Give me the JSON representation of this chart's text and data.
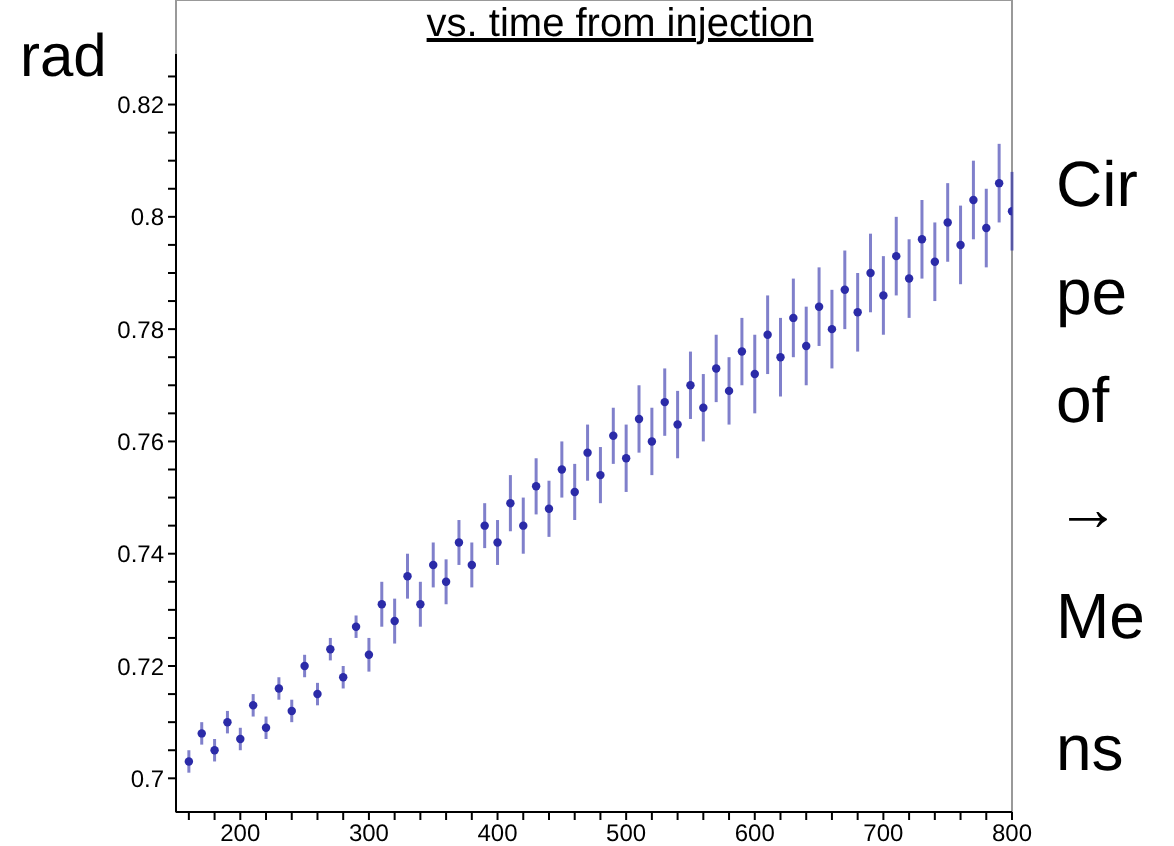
{
  "chart_data": {
    "type": "scatter",
    "title": "vs. time from injection",
    "ylabel": "rad",
    "annotations": [
      "Cir",
      "pe",
      "of",
      "→",
      "Me",
      "ns"
    ],
    "x": [
      160,
      170,
      180,
      190,
      200,
      210,
      220,
      230,
      240,
      250,
      260,
      270,
      280,
      290,
      300,
      310,
      320,
      330,
      340,
      350,
      360,
      370,
      380,
      390,
      400,
      410,
      420,
      430,
      440,
      450,
      460,
      470,
      480,
      490,
      500,
      510,
      520,
      530,
      540,
      550,
      560,
      570,
      580,
      590,
      600,
      610,
      620,
      630,
      640,
      650,
      660,
      670,
      680,
      690,
      700,
      710,
      720,
      730,
      740,
      750,
      760,
      770,
      780,
      790,
      800
    ],
    "series": [
      {
        "color": "#2b2ba8",
        "values": [
          0.703,
          0.708,
          0.705,
          0.71,
          0.707,
          0.713,
          0.709,
          0.716,
          0.712,
          0.72,
          0.715,
          0.723,
          0.718,
          0.727,
          0.722,
          0.731,
          0.728,
          0.736,
          0.731,
          0.738,
          0.735,
          0.742,
          0.738,
          0.745,
          0.742,
          0.749,
          0.745,
          0.752,
          0.748,
          0.755,
          0.751,
          0.758,
          0.754,
          0.761,
          0.757,
          0.764,
          0.76,
          0.767,
          0.763,
          0.77,
          0.766,
          0.773,
          0.769,
          0.776,
          0.772,
          0.779,
          0.775,
          0.782,
          0.777,
          0.784,
          0.78,
          0.787,
          0.783,
          0.79,
          0.786,
          0.793,
          0.789,
          0.796,
          0.792,
          0.799,
          0.795,
          0.803,
          0.798,
          0.806,
          0.801
        ],
        "errors": [
          0.002,
          0.002,
          0.002,
          0.002,
          0.002,
          0.002,
          0.002,
          0.002,
          0.002,
          0.002,
          0.002,
          0.002,
          0.002,
          0.002,
          0.003,
          0.004,
          0.004,
          0.004,
          0.004,
          0.004,
          0.004,
          0.004,
          0.004,
          0.004,
          0.004,
          0.005,
          0.005,
          0.005,
          0.005,
          0.005,
          0.005,
          0.005,
          0.005,
          0.005,
          0.006,
          0.006,
          0.006,
          0.006,
          0.006,
          0.006,
          0.006,
          0.006,
          0.006,
          0.006,
          0.007,
          0.007,
          0.007,
          0.007,
          0.007,
          0.007,
          0.007,
          0.007,
          0.007,
          0.007,
          0.007,
          0.007,
          0.007,
          0.007,
          0.007,
          0.007,
          0.007,
          0.007,
          0.007,
          0.007,
          0.007
        ]
      }
    ],
    "xlim": [
      150,
      800
    ],
    "ylim": [
      0.694,
      0.829
    ],
    "xticks": [
      {
        "value": 160,
        "label": null
      },
      {
        "value": 180,
        "label": null
      },
      200,
      {
        "value": 220,
        "label": null
      },
      {
        "value": 240,
        "label": null
      },
      {
        "value": 260,
        "label": null
      },
      {
        "value": 280,
        "label": null
      },
      300,
      {
        "value": 320,
        "label": null
      },
      {
        "value": 340,
        "label": null
      },
      {
        "value": 360,
        "label": null
      },
      {
        "value": 380,
        "label": null
      },
      400,
      {
        "value": 420,
        "label": null
      },
      {
        "value": 440,
        "label": null
      },
      {
        "value": 460,
        "label": null
      },
      {
        "value": 480,
        "label": null
      },
      500,
      {
        "value": 520,
        "label": null
      },
      {
        "value": 540,
        "label": null
      },
      {
        "value": 560,
        "label": null
      },
      {
        "value": 580,
        "label": null
      },
      600,
      {
        "value": 620,
        "label": null
      },
      {
        "value": 640,
        "label": null
      },
      {
        "value": 660,
        "label": null
      },
      {
        "value": 680,
        "label": null
      },
      700,
      {
        "value": 720,
        "label": null
      },
      {
        "value": 740,
        "label": null
      },
      {
        "value": 760,
        "label": null
      },
      {
        "value": 780,
        "label": null
      },
      800
    ],
    "yticks": [
      0.7,
      {
        "value": 0.705,
        "label": null
      },
      {
        "value": 0.71,
        "label": null
      },
      {
        "value": 0.715,
        "label": null
      },
      0.72,
      {
        "value": 0.725,
        "label": null
      },
      {
        "value": 0.73,
        "label": null
      },
      {
        "value": 0.735,
        "label": null
      },
      0.74,
      {
        "value": 0.745,
        "label": null
      },
      {
        "value": 0.75,
        "label": null
      },
      {
        "value": 0.755,
        "label": null
      },
      0.76,
      {
        "value": 0.765,
        "label": null
      },
      {
        "value": 0.77,
        "label": null
      },
      {
        "value": 0.775,
        "label": null
      },
      0.78,
      {
        "value": 0.785,
        "label": null
      },
      {
        "value": 0.79,
        "label": null
      },
      {
        "value": 0.795,
        "label": null
      },
      0.8,
      {
        "value": 0.805,
        "label": null
      },
      {
        "value": 0.81,
        "label": null
      },
      {
        "value": 0.815,
        "label": null
      },
      0.82,
      {
        "value": 0.825,
        "label": null
      }
    ],
    "grid": false,
    "legend": false,
    "marker": "circle"
  }
}
